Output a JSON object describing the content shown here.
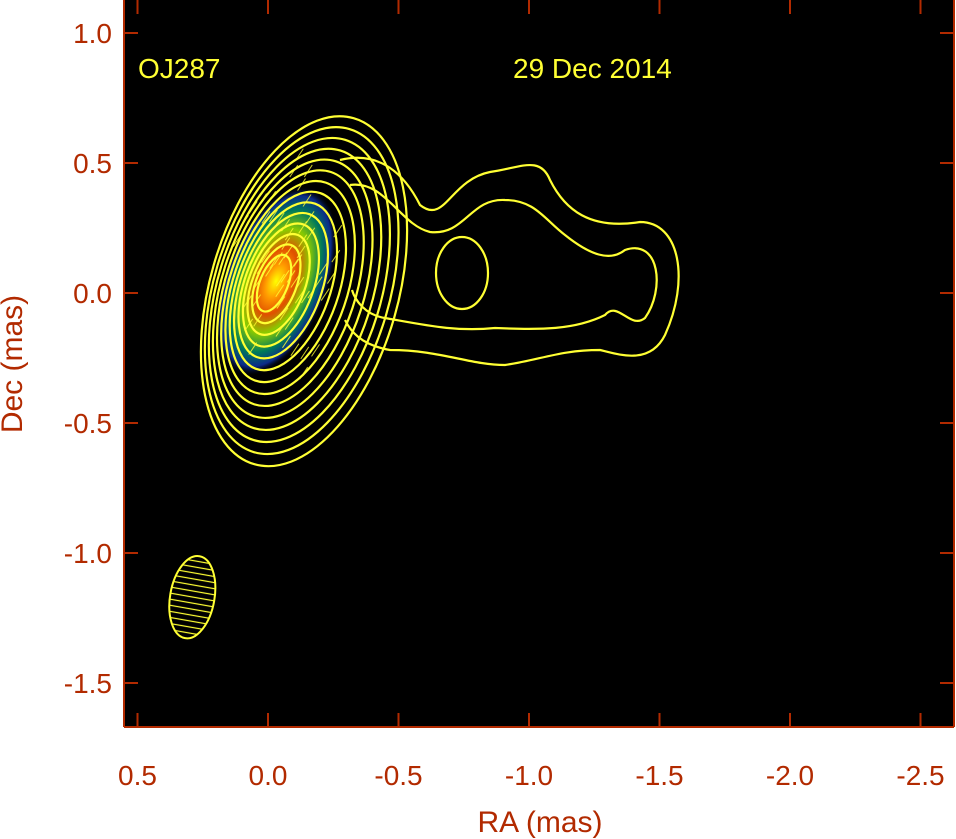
{
  "chart_data": {
    "type": "contour",
    "annotations": {
      "source": "OJ287",
      "date": "29 Dec 2014"
    },
    "xlabel": "RA (mas)",
    "ylabel": "Dec (mas)",
    "xlim": [
      0.5,
      -2.6
    ],
    "ylim": [
      -1.7,
      1.05
    ],
    "xticks": [
      0.5,
      0.0,
      -0.5,
      -1.0,
      -1.5,
      -2.0,
      -2.5
    ],
    "xtick_labels": [
      "0.5",
      "0.0",
      "-0.5",
      "-1.0",
      "-1.5",
      "-2.0",
      "-2.5"
    ],
    "yticks": [
      1.0,
      0.5,
      0.0,
      -0.5,
      -1.0,
      -1.5
    ],
    "ytick_labels": [
      "1.0",
      "0.5",
      "0.0",
      "-0.5",
      "-1.0",
      "-1.5"
    ],
    "core": {
      "ra": 0.0,
      "dec": 0.03
    },
    "beam": {
      "ra": 0.29,
      "dec": -1.17,
      "major_mas": 0.32,
      "minor_mas": 0.17,
      "pa_deg": -10
    },
    "jet_extent_ra": [
      -0.4,
      -1.6
    ],
    "contour_count": 14,
    "grid": false,
    "colors": {
      "background": "#000000",
      "axis": "#b22a00",
      "contours": "#ffff33"
    }
  }
}
